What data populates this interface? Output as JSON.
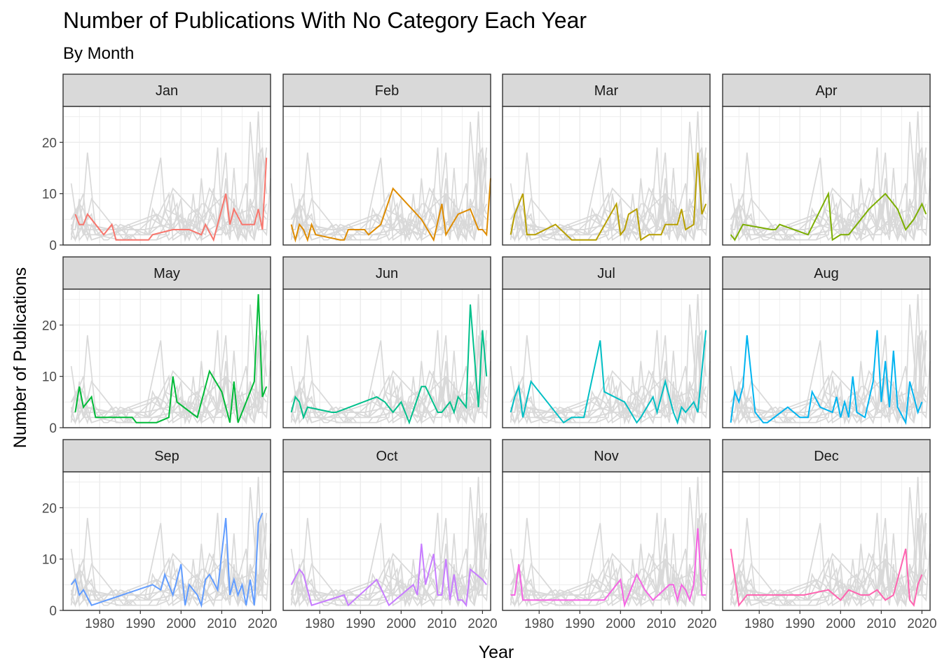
{
  "chart_data": {
    "type": "line",
    "title": "Number of Publications With No Category Each Year",
    "subtitle": "By Month",
    "xlabel": "Year",
    "ylabel": "Number of Publications",
    "xlim": [
      1971,
      2022
    ],
    "ylim": [
      0,
      27
    ],
    "x_ticks": [
      1980,
      1990,
      2000,
      2010,
      2020
    ],
    "y_ticks": [
      0,
      10,
      20
    ],
    "grid": true,
    "legend": "none",
    "background_series_color": "#d9d9d9",
    "panels": [
      {
        "name": "Jan",
        "color": "#F8766D",
        "points": [
          [
            1974,
            6
          ],
          [
            1975,
            4
          ],
          [
            1976,
            4
          ],
          [
            1977,
            6
          ],
          [
            1981,
            2
          ],
          [
            1983,
            4
          ],
          [
            1984,
            1
          ],
          [
            1992,
            1
          ],
          [
            1993,
            2
          ],
          [
            1998,
            3
          ],
          [
            2002,
            3
          ],
          [
            2005,
            2
          ],
          [
            2006,
            4
          ],
          [
            2008,
            1
          ],
          [
            2011,
            10
          ],
          [
            2012,
            4
          ],
          [
            2013,
            7
          ],
          [
            2015,
            4
          ],
          [
            2018,
            4
          ],
          [
            2019,
            7
          ],
          [
            2020,
            3
          ],
          [
            2021,
            17
          ]
        ]
      },
      {
        "name": "Feb",
        "color": "#DE8C00",
        "points": [
          [
            1973,
            4
          ],
          [
            1974,
            1
          ],
          [
            1975,
            4
          ],
          [
            1976,
            3
          ],
          [
            1977,
            1
          ],
          [
            1978,
            4
          ],
          [
            1979,
            2
          ],
          [
            1985,
            1
          ],
          [
            1986,
            1
          ],
          [
            1987,
            3
          ],
          [
            1991,
            3
          ],
          [
            1992,
            2
          ],
          [
            1995,
            4
          ],
          [
            1998,
            11
          ],
          [
            2005,
            5
          ],
          [
            2008,
            1
          ],
          [
            2010,
            8
          ],
          [
            2011,
            2
          ],
          [
            2014,
            6
          ],
          [
            2017,
            7
          ],
          [
            2019,
            3
          ],
          [
            2020,
            3
          ],
          [
            2021,
            2
          ],
          [
            2022,
            13
          ]
        ]
      },
      {
        "name": "Mar",
        "color": "#B79F00",
        "points": [
          [
            1973,
            2
          ],
          [
            1974,
            6
          ],
          [
            1976,
            10
          ],
          [
            1977,
            2
          ],
          [
            1979,
            2
          ],
          [
            1984,
            4
          ],
          [
            1988,
            1
          ],
          [
            1989,
            1
          ],
          [
            1994,
            1
          ],
          [
            1999,
            8
          ],
          [
            2000,
            2
          ],
          [
            2001,
            3
          ],
          [
            2002,
            6
          ],
          [
            2004,
            7
          ],
          [
            2005,
            1
          ],
          [
            2007,
            2
          ],
          [
            2010,
            2
          ],
          [
            2011,
            4
          ],
          [
            2014,
            4
          ],
          [
            2015,
            7
          ],
          [
            2016,
            3
          ],
          [
            2018,
            4
          ],
          [
            2019,
            18
          ],
          [
            2020,
            6
          ],
          [
            2021,
            8
          ]
        ]
      },
      {
        "name": "Apr",
        "color": "#7CAE00",
        "points": [
          [
            1973,
            2
          ],
          [
            1974,
            1
          ],
          [
            1976,
            4
          ],
          [
            1983,
            3
          ],
          [
            1984,
            3
          ],
          [
            1985,
            4
          ],
          [
            1992,
            2
          ],
          [
            1997,
            10
          ],
          [
            1998,
            1
          ],
          [
            2000,
            2
          ],
          [
            2002,
            2
          ],
          [
            2007,
            7
          ],
          [
            2011,
            10
          ],
          [
            2014,
            7
          ],
          [
            2016,
            3
          ],
          [
            2018,
            5
          ],
          [
            2020,
            8
          ],
          [
            2021,
            6
          ]
        ]
      },
      {
        "name": "May",
        "color": "#00BA38",
        "points": [
          [
            1974,
            3
          ],
          [
            1975,
            8
          ],
          [
            1976,
            4
          ],
          [
            1978,
            6
          ],
          [
            1979,
            2
          ],
          [
            1988,
            2
          ],
          [
            1989,
            1
          ],
          [
            1994,
            1
          ],
          [
            1997,
            2
          ],
          [
            1998,
            10
          ],
          [
            1999,
            5
          ],
          [
            2004,
            2
          ],
          [
            2007,
            11
          ],
          [
            2010,
            7
          ],
          [
            2012,
            1
          ],
          [
            2013,
            9
          ],
          [
            2014,
            1
          ],
          [
            2018,
            9
          ],
          [
            2019,
            26
          ],
          [
            2020,
            6
          ],
          [
            2021,
            8
          ]
        ]
      },
      {
        "name": "Jun",
        "color": "#00C08B",
        "points": [
          [
            1973,
            3
          ],
          [
            1974,
            6
          ],
          [
            1975,
            5
          ],
          [
            1976,
            2
          ],
          [
            1977,
            4
          ],
          [
            1983,
            3
          ],
          [
            1984,
            3
          ],
          [
            1994,
            6
          ],
          [
            1996,
            5
          ],
          [
            1998,
            3
          ],
          [
            2000,
            5
          ],
          [
            2002,
            1
          ],
          [
            2005,
            8
          ],
          [
            2006,
            8
          ],
          [
            2009,
            3
          ],
          [
            2010,
            3
          ],
          [
            2012,
            5
          ],
          [
            2013,
            3
          ],
          [
            2014,
            6
          ],
          [
            2016,
            4
          ],
          [
            2017,
            24
          ],
          [
            2019,
            4
          ],
          [
            2020,
            19
          ],
          [
            2021,
            10
          ]
        ]
      },
      {
        "name": "Jul",
        "color": "#00BFC4",
        "points": [
          [
            1973,
            3
          ],
          [
            1974,
            6
          ],
          [
            1975,
            8
          ],
          [
            1976,
            2
          ],
          [
            1978,
            9
          ],
          [
            1986,
            1
          ],
          [
            1988,
            2
          ],
          [
            1991,
            2
          ],
          [
            1995,
            17
          ],
          [
            1996,
            7
          ],
          [
            2001,
            5
          ],
          [
            2004,
            1
          ],
          [
            2005,
            2
          ],
          [
            2008,
            6
          ],
          [
            2009,
            3
          ],
          [
            2011,
            9
          ],
          [
            2013,
            3
          ],
          [
            2014,
            1
          ],
          [
            2015,
            4
          ],
          [
            2016,
            3
          ],
          [
            2018,
            5
          ],
          [
            2019,
            3
          ],
          [
            2021,
            19
          ]
        ]
      },
      {
        "name": "Aug",
        "color": "#00B4F0",
        "points": [
          [
            1973,
            1
          ],
          [
            1974,
            7
          ],
          [
            1975,
            5
          ],
          [
            1976,
            8
          ],
          [
            1977,
            18
          ],
          [
            1979,
            3
          ],
          [
            1981,
            1
          ],
          [
            1982,
            1
          ],
          [
            1987,
            4
          ],
          [
            1990,
            2
          ],
          [
            1992,
            2
          ],
          [
            1993,
            7
          ],
          [
            1995,
            4
          ],
          [
            1998,
            3
          ],
          [
            1999,
            6
          ],
          [
            2000,
            2
          ],
          [
            2001,
            5
          ],
          [
            2002,
            2
          ],
          [
            2003,
            10
          ],
          [
            2004,
            3
          ],
          [
            2006,
            2
          ],
          [
            2008,
            9
          ],
          [
            2009,
            19
          ],
          [
            2010,
            5
          ],
          [
            2011,
            13
          ],
          [
            2012,
            4
          ],
          [
            2013,
            15
          ],
          [
            2014,
            4
          ],
          [
            2016,
            1
          ],
          [
            2017,
            9
          ],
          [
            2019,
            3
          ],
          [
            2020,
            5
          ]
        ]
      },
      {
        "name": "Sep",
        "color": "#619CFF",
        "points": [
          [
            1973,
            5
          ],
          [
            1974,
            6
          ],
          [
            1975,
            3
          ],
          [
            1976,
            4
          ],
          [
            1978,
            1
          ],
          [
            1993,
            5
          ],
          [
            1995,
            4
          ],
          [
            1996,
            7
          ],
          [
            1998,
            3
          ],
          [
            2000,
            9
          ],
          [
            2001,
            1
          ],
          [
            2002,
            5
          ],
          [
            2004,
            3
          ],
          [
            2005,
            1
          ],
          [
            2006,
            6
          ],
          [
            2007,
            7
          ],
          [
            2009,
            4
          ],
          [
            2011,
            18
          ],
          [
            2012,
            3
          ],
          [
            2013,
            6
          ],
          [
            2014,
            3
          ],
          [
            2015,
            5
          ],
          [
            2016,
            1
          ],
          [
            2017,
            6
          ],
          [
            2018,
            1
          ],
          [
            2019,
            17
          ],
          [
            2020,
            19
          ]
        ]
      },
      {
        "name": "Oct",
        "color": "#C77CFF",
        "points": [
          [
            1973,
            5
          ],
          [
            1975,
            8
          ],
          [
            1976,
            7
          ],
          [
            1978,
            1
          ],
          [
            1986,
            3
          ],
          [
            1987,
            1
          ],
          [
            1994,
            6
          ],
          [
            1997,
            1
          ],
          [
            2003,
            5
          ],
          [
            2004,
            3
          ],
          [
            2005,
            13
          ],
          [
            2006,
            5
          ],
          [
            2008,
            11
          ],
          [
            2009,
            3
          ],
          [
            2010,
            3
          ],
          [
            2011,
            10
          ],
          [
            2012,
            2
          ],
          [
            2013,
            7
          ],
          [
            2014,
            2
          ],
          [
            2015,
            2
          ],
          [
            2016,
            1
          ],
          [
            2017,
            8
          ],
          [
            2020,
            6
          ],
          [
            2021,
            5
          ]
        ]
      },
      {
        "name": "Nov",
        "color": "#F564E3",
        "points": [
          [
            1973,
            3
          ],
          [
            1974,
            3
          ],
          [
            1975,
            9
          ],
          [
            1976,
            2
          ],
          [
            1979,
            2
          ],
          [
            1996,
            2
          ],
          [
            2000,
            6
          ],
          [
            2001,
            1
          ],
          [
            2004,
            7
          ],
          [
            2006,
            4
          ],
          [
            2008,
            2
          ],
          [
            2012,
            5
          ],
          [
            2013,
            5
          ],
          [
            2014,
            2
          ],
          [
            2015,
            5
          ],
          [
            2016,
            4
          ],
          [
            2017,
            2
          ],
          [
            2018,
            5
          ],
          [
            2019,
            16
          ],
          [
            2020,
            3
          ],
          [
            2021,
            3
          ]
        ]
      },
      {
        "name": "Dec",
        "color": "#FF64B0",
        "points": [
          [
            1973,
            12
          ],
          [
            1975,
            1
          ],
          [
            1977,
            3
          ],
          [
            1991,
            3
          ],
          [
            1997,
            4
          ],
          [
            2000,
            2
          ],
          [
            2002,
            4
          ],
          [
            2005,
            3
          ],
          [
            2007,
            3
          ],
          [
            2009,
            4
          ],
          [
            2011,
            2
          ],
          [
            2013,
            3
          ],
          [
            2016,
            12
          ],
          [
            2017,
            2
          ],
          [
            2018,
            1
          ],
          [
            2019,
            5
          ],
          [
            2020,
            7
          ]
        ]
      }
    ]
  }
}
